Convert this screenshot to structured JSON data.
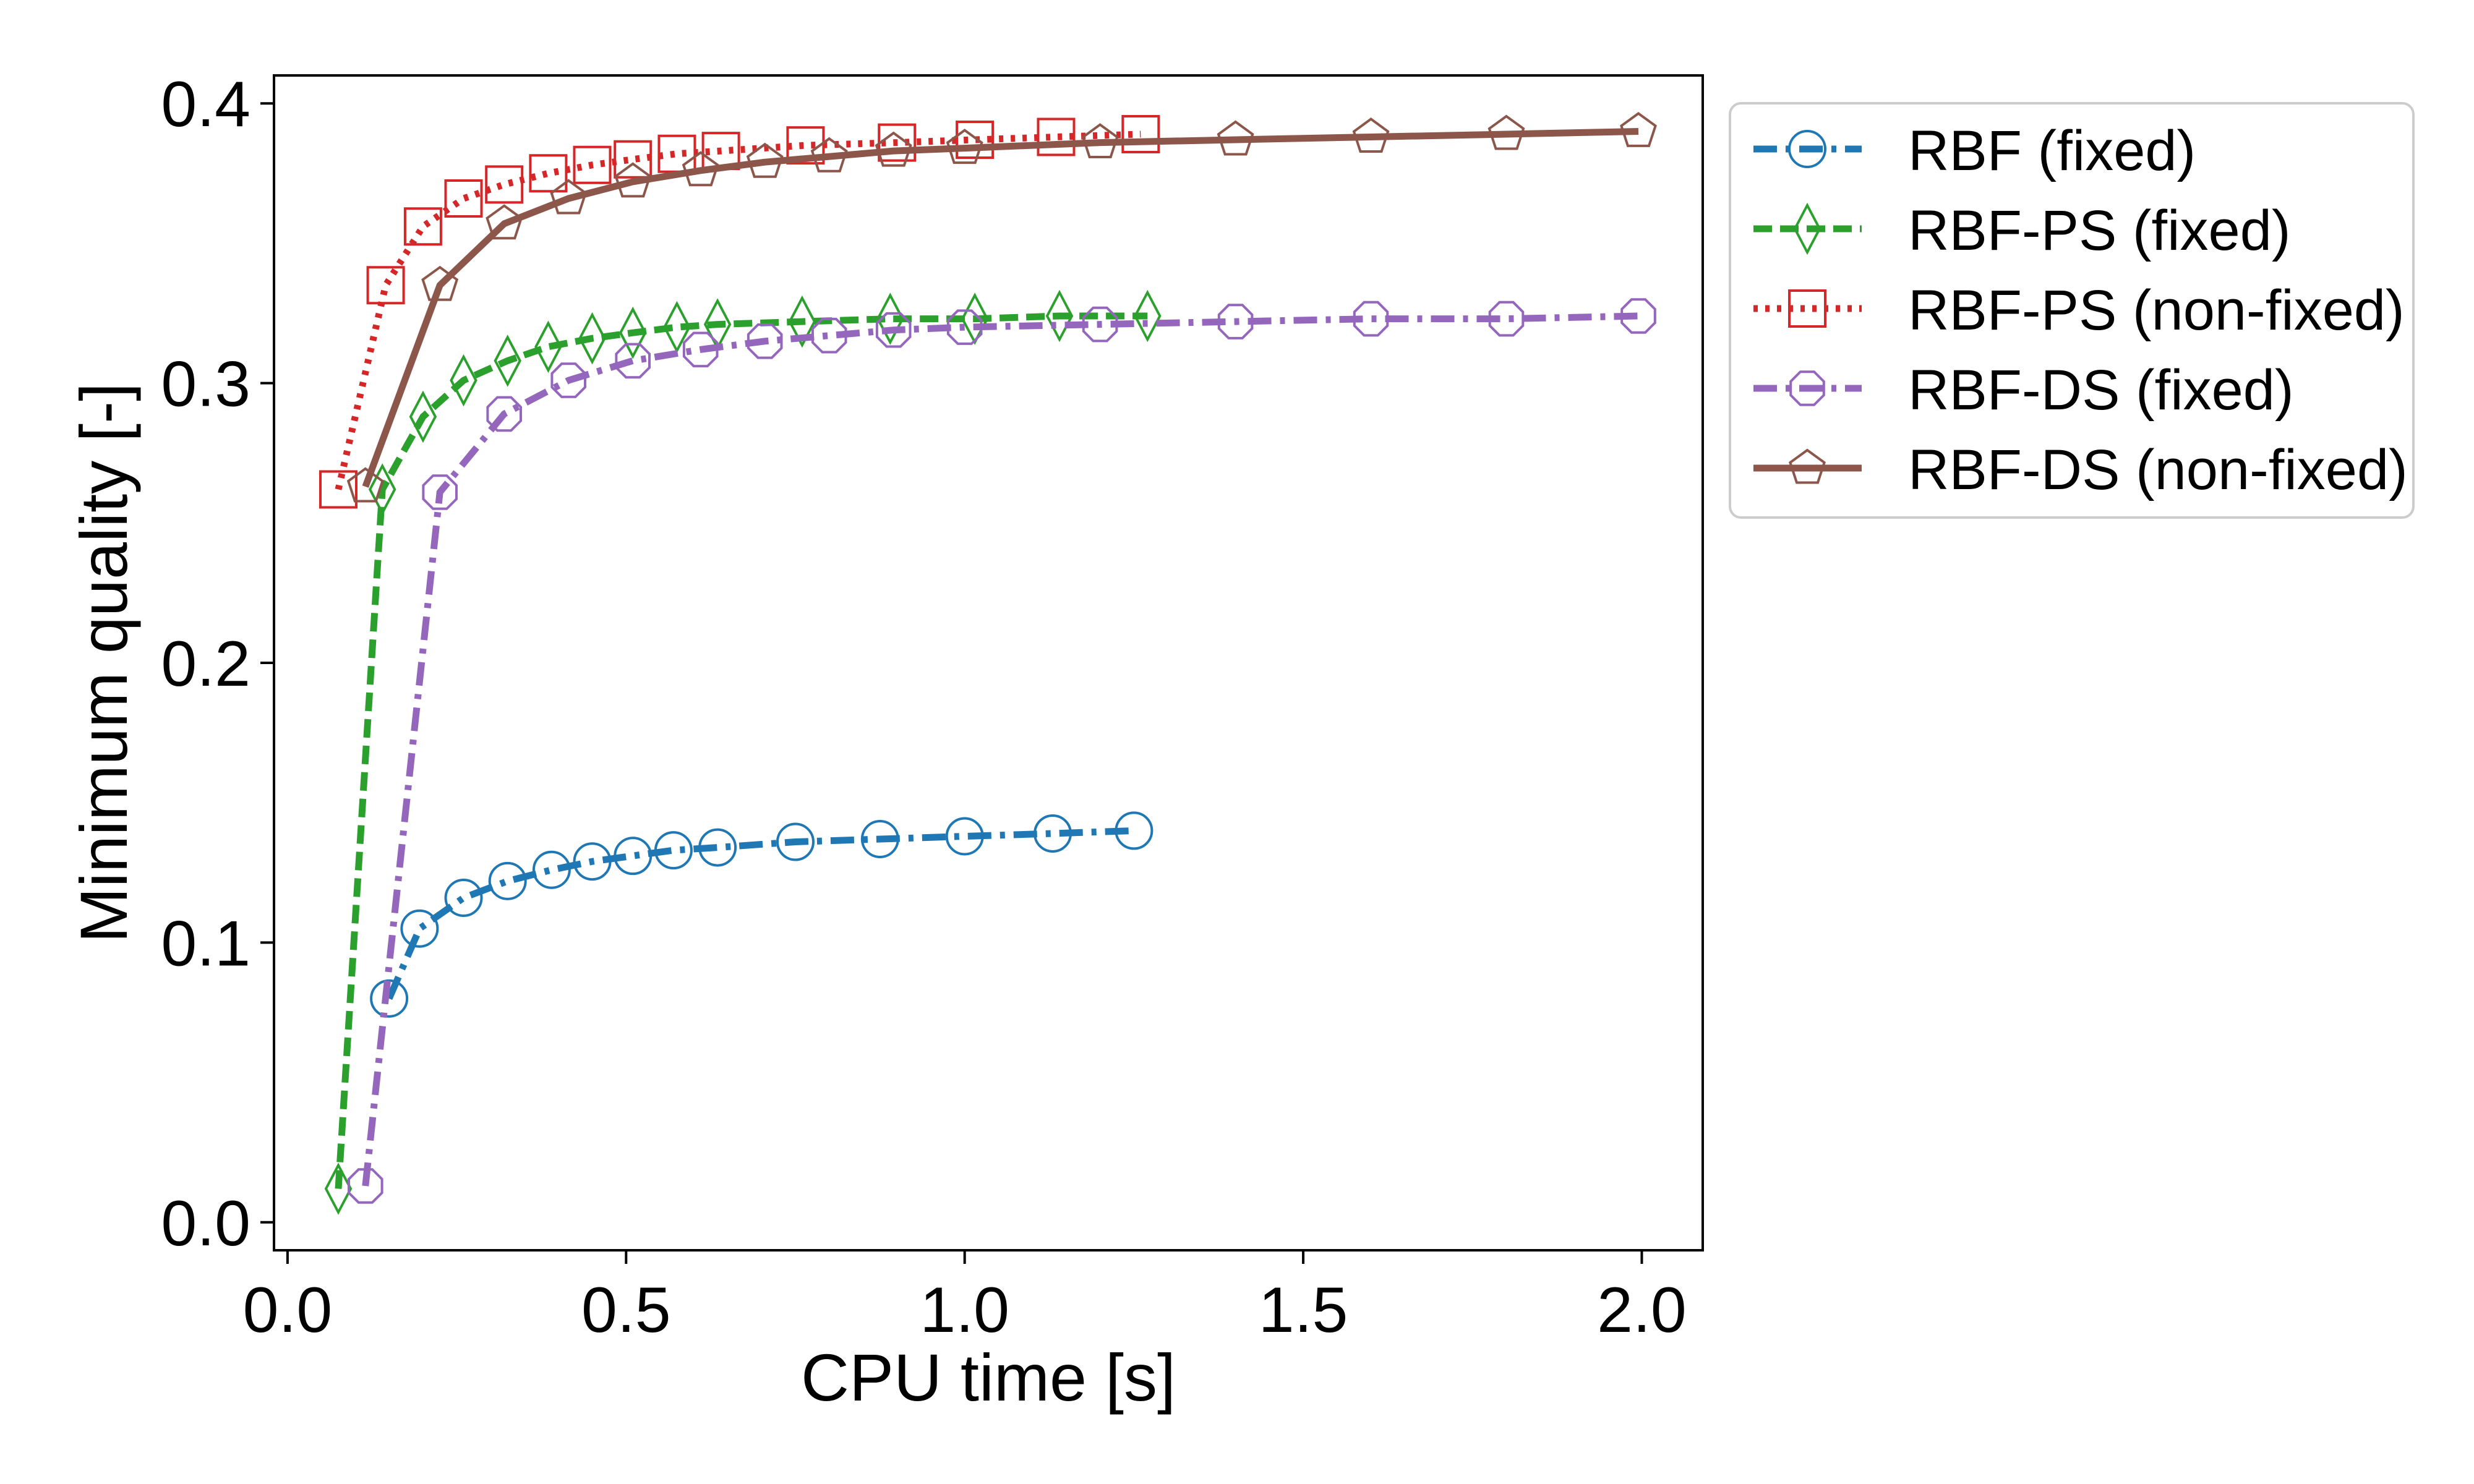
{
  "chart_data": {
    "type": "line",
    "title": "",
    "xlabel": "CPU time [s]",
    "ylabel": "Minimum quality [-]",
    "xlim": [
      -0.02,
      2.09
    ],
    "ylim": [
      -0.01,
      0.41
    ],
    "xticks": [
      0.0,
      0.5,
      1.0,
      1.5,
      2.0
    ],
    "xtick_labels": [
      "0.0",
      "0.5",
      "1.0",
      "1.5",
      "2.0"
    ],
    "yticks": [
      0.0,
      0.1,
      0.2,
      0.3,
      0.4
    ],
    "ytick_labels": [
      "0.0",
      "0.1",
      "0.2",
      "0.3",
      "0.4"
    ],
    "grid": false,
    "legend_position": "outside-right-top",
    "series": [
      {
        "name": "RBF (fixed)",
        "color": "#1f77b4",
        "linestyle": "dashdot",
        "marker": "circle",
        "x": [
          0.15,
          0.195,
          0.26,
          0.325,
          0.39,
          0.45,
          0.51,
          0.57,
          0.635,
          0.75,
          0.875,
          1.0,
          1.13,
          1.25
        ],
        "y": [
          0.08,
          0.105,
          0.116,
          0.122,
          0.126,
          0.129,
          0.131,
          0.133,
          0.134,
          0.136,
          0.137,
          0.138,
          0.139,
          0.14
        ]
      },
      {
        "name": "RBF-PS (fixed)",
        "color": "#2ca02c",
        "linestyle": "dashed",
        "marker": "thin_diamond",
        "x": [
          0.075,
          0.14,
          0.2,
          0.26,
          0.325,
          0.385,
          0.45,
          0.51,
          0.575,
          0.635,
          0.76,
          0.89,
          1.015,
          1.14,
          1.27
        ],
        "y": [
          0.012,
          0.262,
          0.288,
          0.301,
          0.308,
          0.313,
          0.316,
          0.318,
          0.32,
          0.321,
          0.322,
          0.323,
          0.323,
          0.324,
          0.324
        ]
      },
      {
        "name": "RBF-PS (non-fixed)",
        "color": "#d62728",
        "linestyle": "dotted",
        "marker": "square",
        "x": [
          0.075,
          0.145,
          0.2,
          0.26,
          0.32,
          0.385,
          0.45,
          0.51,
          0.575,
          0.64,
          0.765,
          0.9,
          1.015,
          1.135,
          1.26
        ],
        "y": [
          0.262,
          0.335,
          0.356,
          0.366,
          0.371,
          0.375,
          0.378,
          0.38,
          0.382,
          0.383,
          0.385,
          0.386,
          0.387,
          0.388,
          0.389
        ]
      },
      {
        "name": "RBF-DS (fixed)",
        "color": "#9467bd",
        "linestyle": "dashdot",
        "marker": "octagon",
        "x": [
          0.115,
          0.225,
          0.32,
          0.415,
          0.51,
          0.61,
          0.705,
          0.8,
          0.895,
          1.0,
          1.2,
          1.4,
          1.6,
          1.8,
          1.995
        ],
        "y": [
          0.013,
          0.261,
          0.289,
          0.301,
          0.308,
          0.312,
          0.315,
          0.317,
          0.319,
          0.32,
          0.321,
          0.322,
          0.323,
          0.323,
          0.324
        ]
      },
      {
        "name": "RBF-DS (non-fixed)",
        "color": "#8c564b",
        "linestyle": "solid",
        "marker": "pentagon",
        "x": [
          0.115,
          0.225,
          0.32,
          0.415,
          0.51,
          0.61,
          0.705,
          0.8,
          0.895,
          1.0,
          1.2,
          1.4,
          1.6,
          1.8,
          1.995
        ],
        "y": [
          0.263,
          0.335,
          0.357,
          0.366,
          0.372,
          0.376,
          0.379,
          0.381,
          0.383,
          0.384,
          0.386,
          0.387,
          0.388,
          0.389,
          0.39
        ]
      }
    ]
  }
}
